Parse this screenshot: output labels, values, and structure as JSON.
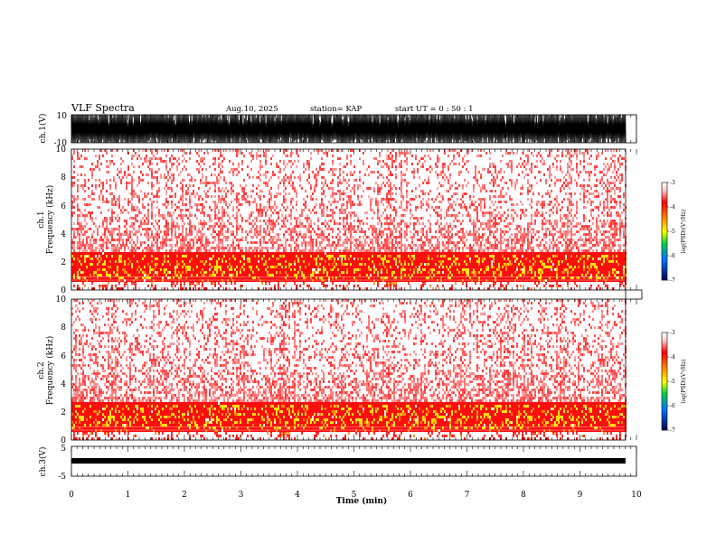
{
  "header": {
    "title": "VLF Spectra",
    "date": "Aug.10, 2025",
    "station": "station= KAP",
    "start": "start  UT =   0  : 50 : 1"
  },
  "chart_data": [
    {
      "type": "line",
      "name": "ch1-waveform",
      "ylabel": "ch.1(V)",
      "ylim": [
        -10,
        10
      ],
      "ytick_labels": [
        "10",
        "-10"
      ],
      "x_range_min": [
        0,
        9.8
      ],
      "description_values": "dense waveform saturating between -10 and 10 V"
    },
    {
      "type": "heatmap",
      "name": "ch1-spectrogram",
      "ylabel_top": "ch.1",
      "ylabel": "Frequency  (kHz)",
      "ylim": [
        0,
        10
      ],
      "ytick_labels": [
        "0",
        "2",
        "4",
        "6",
        "8",
        "10"
      ],
      "colorbar": {
        "label": "log(PSD)(V²/Hz)",
        "range": [
          -7,
          -3
        ],
        "tick_labels": [
          "-3",
          "-4",
          "-5",
          "-6",
          "-7"
        ]
      }
    },
    {
      "type": "heatmap",
      "name": "ch2-spectrogram",
      "ylabel_top": "ch.2",
      "ylabel": "Frequency  (kHz)",
      "ylim": [
        0,
        10
      ],
      "ytick_labels": [
        "0",
        "2",
        "4",
        "6",
        "8",
        "10"
      ],
      "colorbar": {
        "label": "log(PSD)(V²/Hz)",
        "range": [
          -7,
          -3
        ],
        "tick_labels": [
          "-3",
          "-4",
          "-5",
          "-6",
          "-7"
        ]
      }
    },
    {
      "type": "line",
      "name": "ch3-waveform",
      "ylabel": "ch.3(V)",
      "ylim": [
        -5,
        5
      ],
      "ytick_labels": [
        "5",
        "-5"
      ],
      "description_values": "constant band near -1 V"
    }
  ],
  "x_axis": {
    "label": "Time  (min)",
    "range": [
      0,
      10
    ],
    "tick_labels": [
      "0",
      "1",
      "2",
      "3",
      "4",
      "5",
      "6",
      "7",
      "8",
      "9",
      "10"
    ]
  },
  "colors": {
    "signal": "#000000",
    "spectrum_low": "#ff0000",
    "spectrum_high": "#ffe000"
  }
}
